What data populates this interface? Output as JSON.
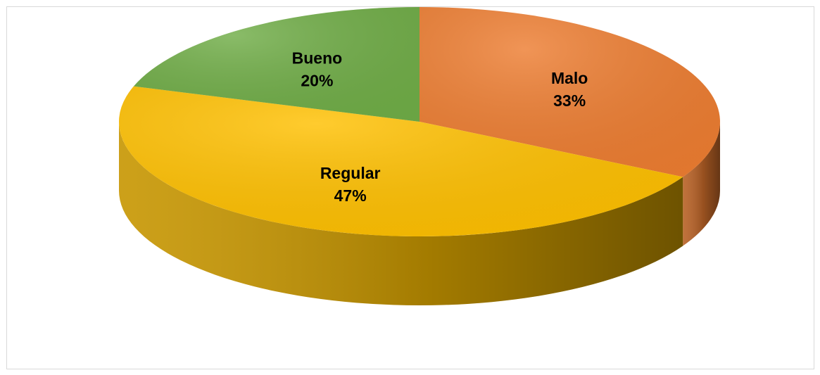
{
  "chart_data": {
    "type": "pie",
    "title": "",
    "slices": [
      {
        "label": "Malo",
        "value": 33,
        "display": "33%",
        "color": "#ED7D31"
      },
      {
        "label": "Regular",
        "value": 47,
        "display": "47%",
        "color": "#FFC000"
      },
      {
        "label": "Bueno",
        "value": 20,
        "display": "20%",
        "color": "#70AD47"
      }
    ],
    "style": "3d-tilted",
    "legend": "none",
    "data_labels": "inside, category name and percentage"
  }
}
